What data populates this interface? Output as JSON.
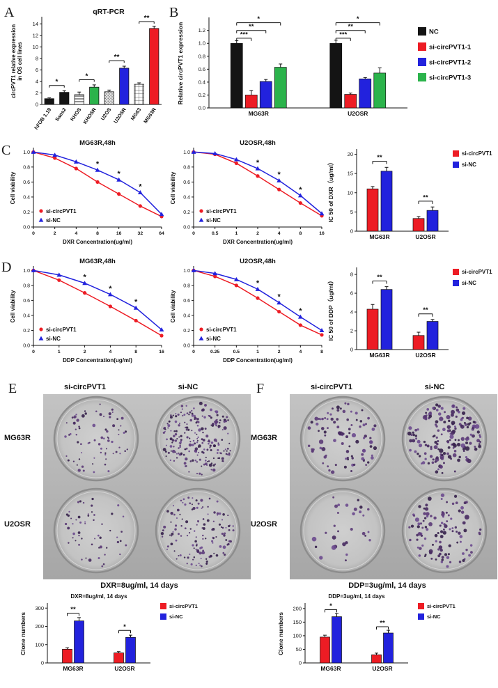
{
  "panels": {
    "A": {
      "label": "A"
    },
    "B": {
      "label": "B"
    },
    "C": {
      "label": "C"
    },
    "D": {
      "label": "D"
    },
    "E": {
      "label": "E",
      "col_headers": [
        "si-circPVT1",
        "si-NC"
      ],
      "row_labels": [
        "MG63R",
        "U2OSR"
      ],
      "caption": "DXR=8ug/ml, 14 days",
      "plate": {
        "counts": [
          [
            75,
            230
          ],
          [
            55,
            140
          ]
        ],
        "dot_r": [
          1.0,
          2.6
        ],
        "seed": 7
      }
    },
    "F": {
      "label": "F",
      "col_headers": [
        "si-circPVT1",
        "si-NC"
      ],
      "row_labels": [
        "MG63R",
        "U2OSR"
      ],
      "caption": "DDP=3ug/ml, 14 days",
      "plate": {
        "counts": [
          [
            95,
            170
          ],
          [
            30,
            110
          ]
        ],
        "dot_r": [
          1.4,
          3.6
        ],
        "seed": 13
      }
    }
  },
  "chart_data": [
    {
      "id": "A",
      "type": "bar",
      "title": "qRT-PCR",
      "ylabel_lines": [
        "circPVT1 relative expression",
        "in OS cell lines"
      ],
      "categories": [
        "hFOB 1.19",
        "Saos2",
        "KHOS",
        "KHOSR",
        "U2OS",
        "U2OSR",
        "MG63",
        "MG63R"
      ],
      "values": [
        1.0,
        2.1,
        1.7,
        3.0,
        2.2,
        6.3,
        3.5,
        13.2
      ],
      "errors": [
        0.15,
        0.3,
        0.45,
        0.4,
        0.3,
        0.35,
        0.25,
        0.4
      ],
      "bars": [
        {
          "color": "#141414",
          "pattern": "solid"
        },
        {
          "color": "#141414",
          "pattern": "solid"
        },
        {
          "color": "#ffffff",
          "pattern": "hlines"
        },
        {
          "color": "#2bb34b",
          "pattern": "solid"
        },
        {
          "color": "#dcdcdc",
          "pattern": "dots"
        },
        {
          "color": "#2222dd",
          "pattern": "solid"
        },
        {
          "color": "#ffffff",
          "pattern": "grid"
        },
        {
          "color": "#ed1c24",
          "pattern": "solid"
        }
      ],
      "ylim": [
        0,
        15
      ],
      "yticks": [
        "0",
        "2",
        "4",
        "6",
        "8",
        "10",
        "12",
        "14"
      ],
      "significance": [
        {
          "a": 0,
          "b": 1,
          "label": "*",
          "y": 3.3
        },
        {
          "a": 2,
          "b": 3,
          "label": "*",
          "y": 4.3
        },
        {
          "a": 4,
          "b": 5,
          "label": "**",
          "y": 7.6
        },
        {
          "a": 6,
          "b": 7,
          "label": "**",
          "y": 14.4
        }
      ]
    },
    {
      "id": "B",
      "type": "grouped_bar",
      "ylabel": "Relative circPVT1 expression",
      "categories": [
        "MG63R",
        "U2OSR"
      ],
      "series": [
        {
          "name": "NC",
          "color": "#141414",
          "values": [
            1.0,
            1.0
          ],
          "errors": [
            0.04,
            0.05
          ]
        },
        {
          "name": "si-circPVT1-1",
          "color": "#ed1c24",
          "values": [
            0.2,
            0.21
          ],
          "errors": [
            0.07,
            0.02
          ]
        },
        {
          "name": "si-circPVT1-2",
          "color": "#2222dd",
          "values": [
            0.41,
            0.45
          ],
          "errors": [
            0.03,
            0.02
          ]
        },
        {
          "name": "si-circPVT1-3",
          "color": "#2bb34b",
          "values": [
            0.63,
            0.54
          ],
          "errors": [
            0.05,
            0.08
          ]
        }
      ],
      "ylim": [
        0,
        1.38
      ],
      "yticks": [
        "0.0",
        "0.2",
        "0.4",
        "0.6",
        "0.8",
        "1.0",
        "1.2"
      ],
      "significance": [
        {
          "g": 0,
          "a": 0,
          "b": 1,
          "label": "***",
          "y": 1.08
        },
        {
          "g": 0,
          "a": 0,
          "b": 2,
          "label": "**",
          "y": 1.2
        },
        {
          "g": 0,
          "a": 0,
          "b": 3,
          "label": "*",
          "y": 1.32
        },
        {
          "g": 1,
          "a": 0,
          "b": 1,
          "label": "***",
          "y": 1.08
        },
        {
          "g": 1,
          "a": 0,
          "b": 2,
          "label": "**",
          "y": 1.2
        },
        {
          "g": 1,
          "a": 0,
          "b": 3,
          "label": "*",
          "y": 1.32
        }
      ]
    },
    {
      "id": "C1",
      "type": "line",
      "title": "MG63R,48h",
      "ylabel": "Cell viability",
      "xlabel": "DXR Concentration(ug/ml)",
      "x": [
        "0",
        "2",
        "4",
        "8",
        "16",
        "32",
        "64"
      ],
      "series": [
        {
          "name": "si-circPVT1",
          "color": "#ed1c24",
          "marker": "circle",
          "values": [
            1.0,
            0.92,
            0.78,
            0.6,
            0.44,
            0.28,
            0.14
          ]
        },
        {
          "name": "si-NC",
          "color": "#2222dd",
          "marker": "triangle",
          "values": [
            1.0,
            0.96,
            0.87,
            0.76,
            0.63,
            0.46,
            0.17
          ]
        }
      ],
      "stars": [
        3,
        4,
        5
      ],
      "ylim": [
        0,
        1.04
      ],
      "yticks": [
        "0.0",
        "0.2",
        "0.4",
        "0.6",
        "0.8",
        "1.0"
      ]
    },
    {
      "id": "C2",
      "type": "line",
      "title": "U2OSR,48h",
      "ylabel": "Cell viability",
      "xlabel": "DXR Concentration(ug/ml)",
      "x": [
        "0",
        "0.5",
        "1",
        "2",
        "4",
        "8",
        "16"
      ],
      "series": [
        {
          "name": "si-circPVT1",
          "color": "#ed1c24",
          "marker": "circle",
          "values": [
            1.0,
            0.97,
            0.85,
            0.68,
            0.5,
            0.32,
            0.15
          ]
        },
        {
          "name": "si-NC",
          "color": "#2222dd",
          "marker": "triangle",
          "values": [
            1.0,
            0.98,
            0.9,
            0.78,
            0.62,
            0.42,
            0.18
          ]
        }
      ],
      "stars": [
        3,
        4,
        5
      ],
      "ylim": [
        0,
        1.04
      ],
      "yticks": [
        "0.0",
        "0.2",
        "0.4",
        "0.6",
        "0.8",
        "1.0"
      ]
    },
    {
      "id": "C3",
      "type": "grouped_bar",
      "ylabel": "IC 50 of DXR（ug/ml）",
      "categories": [
        "MG63R",
        "U2OSR"
      ],
      "series": [
        {
          "name": "si-circPVT1",
          "color": "#ed1c24",
          "values": [
            11.0,
            3.3
          ],
          "errors": [
            0.6,
            0.5
          ]
        },
        {
          "name": "si-NC",
          "color": "#2222dd",
          "values": [
            15.6,
            5.4
          ],
          "errors": [
            1.0,
            0.9
          ]
        }
      ],
      "ylim": [
        0,
        21
      ],
      "yticks": [
        "0",
        "5",
        "10",
        "15",
        "20"
      ],
      "significance": [
        {
          "g": 0,
          "a": 0,
          "b": 1,
          "label": "**",
          "y": 18.2
        },
        {
          "g": 1,
          "a": 0,
          "b": 1,
          "label": "**",
          "y": 7.8
        }
      ]
    },
    {
      "id": "D1",
      "type": "line",
      "title": "MG63R,48h",
      "ylabel": "Cell viability",
      "xlabel": "DDP Concentration(ug/ml)",
      "x": [
        "0",
        "1",
        "2",
        "4",
        "8",
        "16"
      ],
      "series": [
        {
          "name": "si-circPVT1",
          "color": "#ed1c24",
          "marker": "circle",
          "values": [
            1.0,
            0.87,
            0.7,
            0.52,
            0.33,
            0.13
          ]
        },
        {
          "name": "si-NC",
          "color": "#2222dd",
          "marker": "triangle",
          "values": [
            1.0,
            0.94,
            0.83,
            0.68,
            0.5,
            0.21
          ]
        }
      ],
      "stars": [
        2,
        3,
        4
      ],
      "ylim": [
        0,
        1.04
      ],
      "yticks": [
        "0.0",
        "0.2",
        "0.4",
        "0.6",
        "0.8",
        "1.0"
      ]
    },
    {
      "id": "D2",
      "type": "line",
      "title": "U2OSR,48h",
      "ylabel": "Cell viability",
      "xlabel": "DDP Concentration(ug/ml)",
      "x": [
        "0",
        "0.25",
        "0.5",
        "1",
        "2",
        "4",
        "8"
      ],
      "series": [
        {
          "name": "si-circPVT1",
          "color": "#ed1c24",
          "marker": "circle",
          "values": [
            1.0,
            0.92,
            0.8,
            0.63,
            0.45,
            0.27,
            0.14
          ]
        },
        {
          "name": "si-NC",
          "color": "#2222dd",
          "marker": "triangle",
          "values": [
            1.0,
            0.96,
            0.88,
            0.75,
            0.57,
            0.38,
            0.2
          ]
        }
      ],
      "stars": [
        3,
        4,
        5
      ],
      "ylim": [
        0,
        1.04
      ],
      "yticks": [
        "0.0",
        "0.2",
        "0.4",
        "0.6",
        "0.8",
        "1.0"
      ]
    },
    {
      "id": "D3",
      "type": "grouped_bar",
      "ylabel": "IC 50 of DDP（ug/ml）",
      "categories": [
        "MG63R",
        "U2OSR"
      ],
      "series": [
        {
          "name": "si-circPVT1",
          "color": "#ed1c24",
          "values": [
            4.3,
            1.5
          ],
          "errors": [
            0.5,
            0.35
          ]
        },
        {
          "name": "si-NC",
          "color": "#2222dd",
          "values": [
            6.4,
            3.0
          ],
          "errors": [
            0.3,
            0.2
          ]
        }
      ],
      "ylim": [
        0,
        8.6
      ],
      "yticks": [
        "0",
        "2",
        "4",
        "6",
        "8"
      ],
      "significance": [
        {
          "g": 0,
          "a": 0,
          "b": 1,
          "label": "**",
          "y": 7.3
        },
        {
          "g": 1,
          "a": 0,
          "b": 1,
          "label": "**",
          "y": 3.8
        }
      ]
    },
    {
      "id": "E1",
      "type": "grouped_bar",
      "title": "DXR=8ug/ml, 14 days",
      "ylabel": "Clone numbers",
      "categories": [
        "MG63R",
        "U2OSR"
      ],
      "series": [
        {
          "name": "si-circPVT1",
          "color": "#ed1c24",
          "values": [
            75,
            55
          ],
          "errors": [
            8,
            7
          ]
        },
        {
          "name": "si-NC",
          "color": "#2222dd",
          "values": [
            230,
            140
          ],
          "errors": [
            18,
            12
          ]
        }
      ],
      "ylim": [
        0,
        320
      ],
      "yticks": [
        "0",
        "100",
        "200",
        "300"
      ],
      "significance": [
        {
          "g": 0,
          "a": 0,
          "b": 1,
          "label": "**",
          "y": 272
        },
        {
          "g": 1,
          "a": 0,
          "b": 1,
          "label": "*",
          "y": 178
        }
      ]
    },
    {
      "id": "F1",
      "type": "grouped_bar",
      "title": "DDP=3ug/ml, 14 days",
      "ylabel": "Clone numbers",
      "categories": [
        "MG63R",
        "U2OSR"
      ],
      "series": [
        {
          "name": "si-circPVT1",
          "color": "#ed1c24",
          "values": [
            95,
            30
          ],
          "errors": [
            7,
            6
          ]
        },
        {
          "name": "si-NC",
          "color": "#2222dd",
          "values": [
            170,
            110
          ],
          "errors": [
            12,
            10
          ]
        }
      ],
      "ylim": [
        0,
        215
      ],
      "yticks": [
        "0",
        "50",
        "100",
        "150",
        "200"
      ],
      "significance": [
        {
          "g": 0,
          "a": 0,
          "b": 1,
          "label": "*",
          "y": 196
        },
        {
          "g": 1,
          "a": 0,
          "b": 1,
          "label": "**",
          "y": 133
        }
      ]
    }
  ]
}
